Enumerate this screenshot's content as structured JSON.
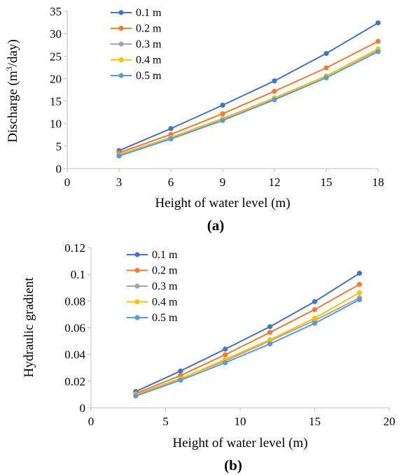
{
  "chart_data": [
    {
      "type": "line",
      "panel_label": "(a)",
      "xlabel": "Height of water level (m)",
      "ylabel_main": "Discharge (m",
      "ylabel_sup": "3",
      "ylabel_tail": "/day)",
      "xlim": [
        0,
        18
      ],
      "ylim": [
        0,
        35
      ],
      "xticks": [
        0,
        3,
        6,
        9,
        12,
        15,
        18
      ],
      "yticks": [
        0,
        5,
        10,
        15,
        20,
        25,
        30,
        35
      ],
      "ytick_labels": [
        "0",
        "5",
        "10",
        "15",
        "20",
        "25",
        "30",
        "35"
      ],
      "x": [
        3,
        6,
        9,
        12,
        15,
        18
      ],
      "grid": false,
      "legend_position": "top-left",
      "series": [
        {
          "name": "0.1 m",
          "color": "#4472C4",
          "values": [
            4.0,
            8.9,
            14.1,
            19.5,
            25.6,
            32.4
          ]
        },
        {
          "name": "0.2 m",
          "color": "#ED7D31",
          "values": [
            3.5,
            7.6,
            12.2,
            17.2,
            22.4,
            28.3
          ]
        },
        {
          "name": "0.3 m",
          "color": "#A5A5A5",
          "values": [
            3.1,
            6.9,
            11.1,
            15.7,
            20.6,
            26.4
          ]
        },
        {
          "name": "0.4 m",
          "color": "#FFC000",
          "values": [
            3.0,
            6.8,
            11.0,
            15.6,
            20.6,
            26.6
          ]
        },
        {
          "name": "0.5 m",
          "color": "#5B9BD5",
          "values": [
            2.8,
            6.6,
            10.7,
            15.3,
            20.2,
            26.0
          ]
        }
      ]
    },
    {
      "type": "line",
      "panel_label": "(b)",
      "xlabel": "Height of water level (m)",
      "ylabel_main": "Hydraulic gradient",
      "ylabel_sup": "",
      "ylabel_tail": "",
      "xlim": [
        0,
        20
      ],
      "ylim": [
        0,
        0.12
      ],
      "xticks": [
        0,
        5,
        10,
        15,
        20
      ],
      "yticks": [
        0,
        0.02,
        0.04,
        0.06,
        0.08,
        0.1,
        0.12
      ],
      "ytick_labels": [
        "0",
        "0.02",
        "0.04",
        "0.06",
        "0.08",
        "0.1",
        "0.12"
      ],
      "x": [
        3,
        6,
        9,
        12,
        15,
        18
      ],
      "grid": false,
      "legend_position": "top-left",
      "series": [
        {
          "name": "0.1 m",
          "color": "#4472C4",
          "values": [
            0.0122,
            0.0276,
            0.044,
            0.0608,
            0.0796,
            0.1008
          ]
        },
        {
          "name": "0.2 m",
          "color": "#ED7D31",
          "values": [
            0.0107,
            0.0242,
            0.0398,
            0.0565,
            0.0736,
            0.0925
          ]
        },
        {
          "name": "0.3 m",
          "color": "#A5A5A5",
          "values": [
            0.0098,
            0.022,
            0.0352,
            0.0502,
            0.0655,
            0.0824
          ]
        },
        {
          "name": "0.4 m",
          "color": "#FFC000",
          "values": [
            0.0097,
            0.0216,
            0.0363,
            0.051,
            0.0672,
            0.0862
          ]
        },
        {
          "name": "0.5 m",
          "color": "#5B9BD5",
          "values": [
            0.0089,
            0.0207,
            0.0338,
            0.0479,
            0.0633,
            0.081
          ]
        }
      ]
    }
  ]
}
